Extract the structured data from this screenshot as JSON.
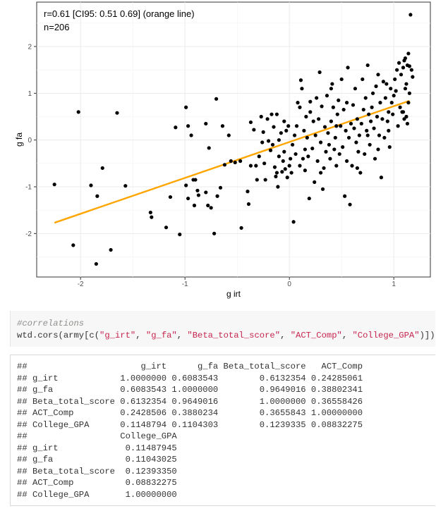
{
  "chart_data": {
    "type": "scatter",
    "xlabel": "g irt",
    "ylabel": "g fa",
    "xlim": [
      -2.42,
      1.35
    ],
    "ylim": [
      -2.93,
      2.95
    ],
    "xticks": [
      -2,
      -1,
      0,
      1
    ],
    "yticks": [
      -2,
      -1,
      0,
      1,
      2
    ],
    "xtick_labels": [
      "-2",
      "-1",
      "0",
      "1"
    ],
    "ytick_labels": [
      "-2",
      "-1",
      "0",
      "1",
      "2"
    ],
    "grid": true,
    "annotation_lines": [
      "r=0.61 [CI95: 0.51 0.69] (orange line)",
      "n=206"
    ],
    "fit_line": {
      "color": "#ffa500",
      "x": [
        -2.25,
        1.15
      ],
      "y": [
        -1.77,
        0.84
      ]
    },
    "point_color": "#000000",
    "points": [
      [
        -2.25,
        -0.95
      ],
      [
        -2.07,
        -2.25
      ],
      [
        -2.02,
        0.6
      ],
      [
        -1.9,
        -0.97
      ],
      [
        -1.84,
        -1.2
      ],
      [
        -1.85,
        -2.65
      ],
      [
        -1.79,
        -0.6
      ],
      [
        -1.71,
        -2.35
      ],
      [
        -1.65,
        0.58
      ],
      [
        -1.57,
        -0.98
      ],
      [
        -1.33,
        -1.55
      ],
      [
        -1.32,
        -1.65
      ],
      [
        -1.18,
        -1.87
      ],
      [
        -1.14,
        -1.22
      ],
      [
        -1.09,
        0.27
      ],
      [
        -1.05,
        -2.02
      ],
      [
        -0.99,
        0.7
      ],
      [
        -0.99,
        -0.97
      ],
      [
        -0.97,
        -1.25
      ],
      [
        -0.97,
        0.3
      ],
      [
        -0.94,
        0.1
      ],
      [
        -0.92,
        -0.85
      ],
      [
        -0.9,
        -0.85
      ],
      [
        -0.91,
        -1.4
      ],
      [
        -0.88,
        -1.08
      ],
      [
        -0.87,
        -1.18
      ],
      [
        -0.8,
        -1.12
      ],
      [
        -0.8,
        0.35
      ],
      [
        -0.78,
        -1.4
      ],
      [
        -0.75,
        -1.45
      ],
      [
        -0.77,
        -0.17
      ],
      [
        -0.72,
        -2.0
      ],
      [
        -0.7,
        0.88
      ],
      [
        -0.69,
        -1.2
      ],
      [
        -0.66,
        -1.02
      ],
      [
        -0.64,
        0.3
      ],
      [
        -0.62,
        -0.53
      ],
      [
        -0.58,
        0.1
      ],
      [
        -0.56,
        -0.45
      ],
      [
        -0.52,
        -0.48
      ],
      [
        -0.47,
        -0.45
      ],
      [
        -0.46,
        -1.88
      ],
      [
        -0.4,
        -1.1
      ],
      [
        -0.39,
        -1.37
      ],
      [
        -0.37,
        0.38
      ],
      [
        -0.37,
        -0.55
      ],
      [
        -0.34,
        0.22
      ],
      [
        -0.32,
        -0.55
      ],
      [
        -0.31,
        -0.85
      ],
      [
        -0.29,
        -0.35
      ],
      [
        -0.27,
        0.5
      ],
      [
        -0.26,
        -0.05
      ],
      [
        -0.25,
        0.17
      ],
      [
        -0.24,
        -0.5
      ],
      [
        -0.23,
        -0.85
      ],
      [
        -0.21,
        0.45
      ],
      [
        -0.2,
        -0.02
      ],
      [
        -0.18,
        -0.22
      ],
      [
        -0.17,
        0.55
      ],
      [
        -0.16,
        -0.1
      ],
      [
        -0.15,
        0.28
      ],
      [
        -0.14,
        -0.58
      ],
      [
        -0.13,
        -0.78
      ],
      [
        -0.12,
        -0.7
      ],
      [
        -0.12,
        0.55
      ],
      [
        -0.11,
        -1.0
      ],
      [
        -0.1,
        0.0
      ],
      [
        -0.1,
        -0.35
      ],
      [
        -0.08,
        0.15
      ],
      [
        -0.07,
        -0.68
      ],
      [
        -0.06,
        -0.45
      ],
      [
        -0.05,
        -0.25
      ],
      [
        -0.04,
        -0.62
      ],
      [
        -0.03,
        0.2
      ],
      [
        -0.02,
        -0.8
      ],
      [
        -0.01,
        0.3
      ],
      [
        0.0,
        -0.55
      ],
      [
        0.01,
        -0.4
      ],
      [
        0.02,
        -0.7
      ],
      [
        0.03,
        -0.1
      ],
      [
        0.04,
        -1.75
      ],
      [
        0.06,
        -0.3
      ],
      [
        0.07,
        0.3
      ],
      [
        0.08,
        0.8
      ],
      [
        0.1,
        -0.55
      ],
      [
        0.11,
        1.28
      ],
      [
        0.12,
        1.1
      ],
      [
        0.13,
        -0.4
      ],
      [
        0.14,
        0.2
      ],
      [
        0.15,
        -0.65
      ],
      [
        0.16,
        0.5
      ],
      [
        0.17,
        0.05
      ],
      [
        0.18,
        -0.35
      ],
      [
        0.19,
        -1.25
      ],
      [
        0.2,
        0.82
      ],
      [
        0.22,
        -0.18
      ],
      [
        0.23,
        0.4
      ],
      [
        0.24,
        -0.9
      ],
      [
        0.25,
        0.1
      ],
      [
        0.26,
        0.9
      ],
      [
        0.27,
        -0.45
      ],
      [
        0.28,
        0.45
      ],
      [
        0.29,
        1.45
      ],
      [
        0.3,
        -0.05
      ],
      [
        0.31,
        0.72
      ],
      [
        0.32,
        -1.05
      ],
      [
        0.33,
        -0.6
      ],
      [
        0.34,
        0.28
      ],
      [
        0.35,
        -0.25
      ],
      [
        0.36,
        0.95
      ],
      [
        0.37,
        0.15
      ],
      [
        0.38,
        -0.1
      ],
      [
        0.39,
        -0.4
      ],
      [
        0.4,
        0.4
      ],
      [
        0.41,
        1.2
      ],
      [
        0.42,
        0.7
      ],
      [
        0.43,
        -0.2
      ],
      [
        0.44,
        0.05
      ],
      [
        0.45,
        -0.55
      ],
      [
        0.46,
        0.55
      ],
      [
        0.47,
        0.85
      ],
      [
        0.48,
        -0.3
      ],
      [
        0.49,
        0.3
      ],
      [
        0.5,
        1.3
      ],
      [
        0.51,
        -0.15
      ],
      [
        0.52,
        0.65
      ],
      [
        0.53,
        -1.2
      ],
      [
        0.54,
        0.2
      ],
      [
        0.55,
        -0.45
      ],
      [
        0.56,
        1.55
      ],
      [
        0.57,
        0.05
      ],
      [
        0.58,
        -1.38
      ],
      [
        0.59,
        0.35
      ],
      [
        0.6,
        -0.55
      ],
      [
        0.61,
        0.75
      ],
      [
        0.62,
        0.25
      ],
      [
        0.63,
        1.1
      ],
      [
        0.64,
        -0.05
      ],
      [
        0.65,
        0.45
      ],
      [
        0.66,
        -0.25
      ],
      [
        0.67,
        0.1
      ],
      [
        0.68,
        -0.7
      ],
      [
        0.69,
        0.35
      ],
      [
        0.7,
        1.3
      ],
      [
        0.71,
        0.65
      ],
      [
        0.72,
        -0.3
      ],
      [
        0.73,
        0.9
      ],
      [
        0.74,
        0.2
      ],
      [
        0.75,
        1.6
      ],
      [
        0.76,
        0.55
      ],
      [
        0.77,
        -0.1
      ],
      [
        0.78,
        0.4
      ],
      [
        0.79,
        0.7
      ],
      [
        0.8,
        1.0
      ],
      [
        0.81,
        0.25
      ],
      [
        0.82,
        -0.4
      ],
      [
        0.83,
        1.15
      ],
      [
        0.84,
        0.5
      ],
      [
        0.85,
        1.4
      ],
      [
        0.86,
        0.1
      ],
      [
        0.87,
        0.8
      ],
      [
        0.88,
        -0.8
      ],
      [
        0.89,
        0.45
      ],
      [
        0.9,
        1.25
      ],
      [
        0.91,
        0.05
      ],
      [
        0.92,
        0.9
      ],
      [
        0.93,
        1.2
      ],
      [
        0.94,
        0.4
      ],
      [
        0.95,
        0.2
      ],
      [
        0.96,
        -0.15
      ],
      [
        0.97,
        1.1
      ],
      [
        0.98,
        0.8
      ],
      [
        0.99,
        0.55
      ],
      [
        1.0,
        0.95
      ],
      [
        1.01,
        1.3
      ],
      [
        1.02,
        1.05
      ],
      [
        1.03,
        1.5
      ],
      [
        1.04,
        0.3
      ],
      [
        1.05,
        1.65
      ],
      [
        1.06,
        0.7
      ],
      [
        1.07,
        1.4
      ],
      [
        1.08,
        0.6
      ],
      [
        1.09,
        1.55
      ],
      [
        1.1,
        0.45
      ],
      [
        1.11,
        1.75
      ],
      [
        1.12,
        1.2
      ],
      [
        1.13,
        1.6
      ],
      [
        1.14,
        1.85
      ],
      [
        1.15,
        1.58
      ],
      [
        1.16,
        2.68
      ],
      [
        1.17,
        1.5
      ],
      [
        1.18,
        1.35
      ],
      [
        1.1,
        1.7
      ],
      [
        1.11,
        1.1
      ],
      [
        1.12,
        0.5
      ],
      [
        1.13,
        0.35
      ],
      [
        1.14,
        0.8
      ],
      [
        1.15,
        1.0
      ],
      [
        1.09,
        0.6
      ],
      [
        0.1,
        0.7
      ],
      [
        -0.05,
        0.4
      ],
      [
        0.05,
        0.1
      ],
      [
        0.15,
        -0.2
      ],
      [
        0.2,
        0.6
      ],
      [
        0.3,
        -0.7
      ],
      [
        0.4,
        1.1
      ],
      [
        0.45,
        0.3
      ],
      [
        0.55,
        0.8
      ],
      [
        0.65,
        -0.6
      ],
      [
        0.75,
        0.1
      ],
      [
        0.85,
        -0.2
      ],
      [
        0.95,
        0.6
      ]
    ]
  },
  "code": {
    "comment": "#correlations",
    "tokens": [
      {
        "t": "wtd.cors(army[c(",
        "k": "plain"
      },
      {
        "t": "\"g_irt\"",
        "k": "string"
      },
      {
        "t": ", ",
        "k": "plain"
      },
      {
        "t": "\"g_fa\"",
        "k": "string"
      },
      {
        "t": ", ",
        "k": "plain"
      },
      {
        "t": "\"Beta_total_score\"",
        "k": "string"
      },
      {
        "t": ", ",
        "k": "plain"
      },
      {
        "t": "\"ACT_Comp\"",
        "k": "string"
      },
      {
        "t": ", ",
        "k": "plain"
      },
      {
        "t": "\"College_GPA\"",
        "k": "string"
      },
      {
        "t": ")])",
        "k": "plain"
      }
    ]
  },
  "output_lines": [
    "##                      g_irt      g_fa Beta_total_score   ACT_Comp",
    "## g_irt            1.0000000 0.6083543        0.6132354 0.24285061",
    "## g_fa             0.6083543 1.0000000        0.9649016 0.38802341",
    "## Beta_total_score 0.6132354 0.9649016        1.0000000 0.36558426",
    "## ACT_Comp         0.2428506 0.3880234        0.3655843 1.00000000",
    "## College_GPA      0.1148794 0.1104303        0.1239335 0.08832275",
    "##                  College_GPA",
    "## g_irt             0.11487945",
    "## g_fa              0.11043025",
    "## Beta_total_score  0.12393350",
    "## ACT_Comp          0.08832275",
    "## College_GPA       1.00000000"
  ]
}
